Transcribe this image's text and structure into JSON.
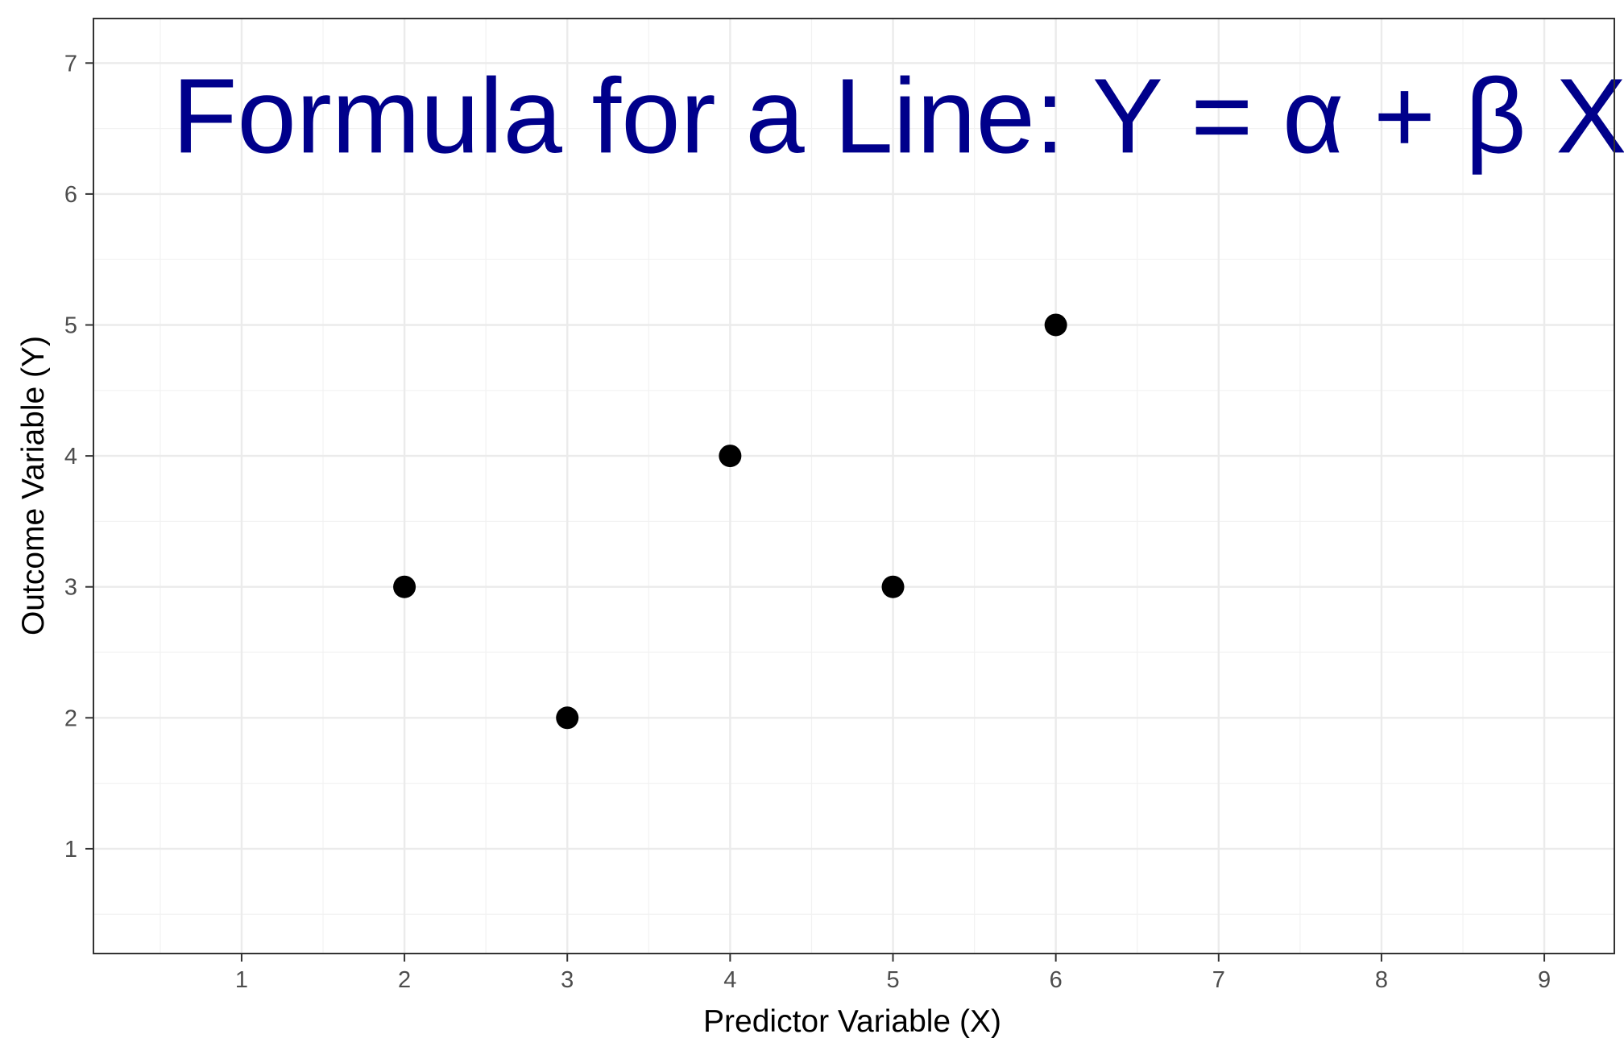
{
  "chart_data": {
    "type": "scatter",
    "annotation": "Formula for a Line: Y = α + β X",
    "annotation_color": "#00008B",
    "xlabel": "Predictor Variable (X)",
    "ylabel": "Outcome Variable (Y)",
    "xlim": [
      0.09,
      9.43
    ],
    "ylim": [
      0.2,
      7.34
    ],
    "x_ticks": [
      "1",
      "2",
      "3",
      "4",
      "5",
      "6",
      "7",
      "8",
      "9"
    ],
    "y_ticks": [
      "1",
      "2",
      "3",
      "4",
      "5",
      "6",
      "7"
    ],
    "grid": true,
    "point_color": "#000000",
    "points": [
      {
        "x": 2,
        "y": 3
      },
      {
        "x": 3,
        "y": 2
      },
      {
        "x": 4,
        "y": 4
      },
      {
        "x": 5,
        "y": 3
      },
      {
        "x": 6,
        "y": 5
      }
    ]
  }
}
